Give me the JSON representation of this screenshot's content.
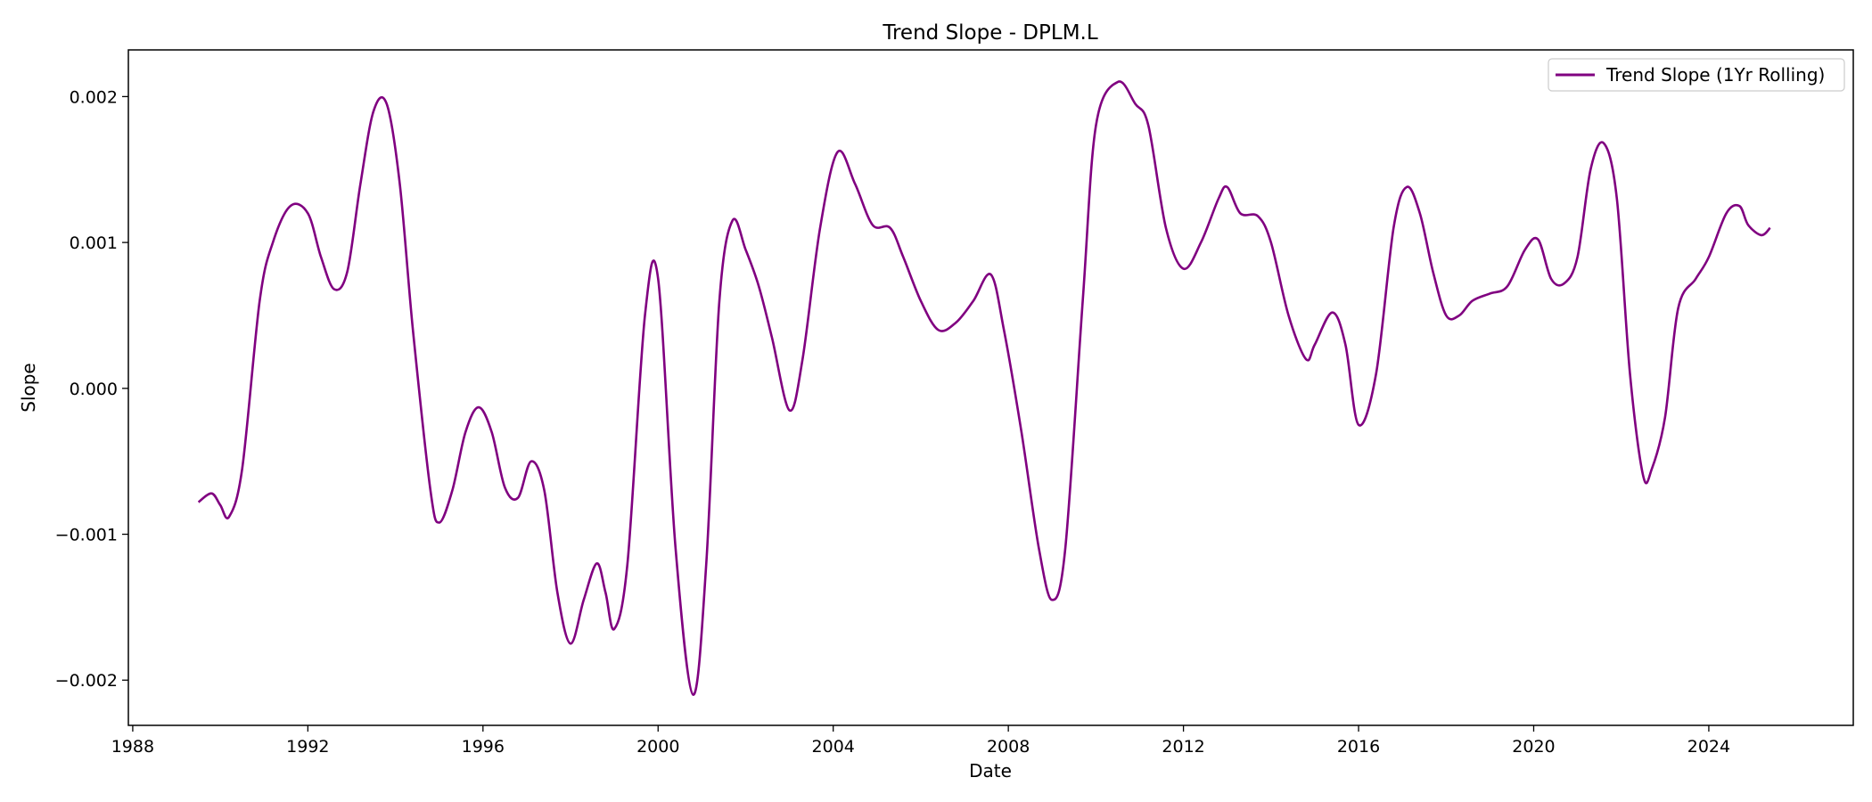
{
  "chart_data": {
    "type": "line",
    "title": "Trend Slope - DPLM.L",
    "xlabel": "Date",
    "ylabel": "Slope",
    "x_ticks": [
      "1988",
      "1992",
      "1996",
      "2000",
      "2004",
      "2008",
      "2012",
      "2016",
      "2020",
      "2024"
    ],
    "y_ticks": [
      "0.002",
      "0.001",
      "0.000",
      "−0.001",
      "−0.002"
    ],
    "xlim": [
      1987.9,
      2027.3
    ],
    "ylim": [
      -0.00231,
      0.00232
    ],
    "grid": false,
    "legend_position": "top-right",
    "color": "#800080",
    "series": [
      {
        "name": "Trend Slope (1Yr Rolling)",
        "x": [
          1989.5,
          1989.8,
          1990.0,
          1990.2,
          1990.5,
          1990.9,
          1991.2,
          1991.6,
          1992.0,
          1992.3,
          1992.6,
          1992.9,
          1993.2,
          1993.5,
          1993.8,
          1994.1,
          1994.4,
          1994.8,
          1995.0,
          1995.3,
          1995.6,
          1995.9,
          1996.2,
          1996.5,
          1996.8,
          1997.1,
          1997.4,
          1997.7,
          1998.0,
          1998.3,
          1998.6,
          1998.8,
          1999.0,
          1999.3,
          1999.7,
          2000.0,
          2000.4,
          2000.8,
          2001.1,
          2001.4,
          2001.7,
          2002.0,
          2002.3,
          2002.6,
          2003.0,
          2003.3,
          2003.7,
          2004.1,
          2004.5,
          2004.9,
          2005.3,
          2005.6,
          2006.0,
          2006.4,
          2006.8,
          2007.2,
          2007.6,
          2007.9,
          2008.3,
          2008.7,
          2009.0,
          2009.3,
          2009.7,
          2010.0,
          2010.5,
          2010.9,
          2011.2,
          2011.6,
          2012.0,
          2012.4,
          2012.8,
          2013.0,
          2013.3,
          2013.7,
          2014.0,
          2014.4,
          2014.8,
          2015.0,
          2015.4,
          2015.7,
          2016.0,
          2016.4,
          2016.8,
          2017.1,
          2017.4,
          2017.7,
          2018.0,
          2018.3,
          2018.6,
          2019.0,
          2019.4,
          2019.8,
          2020.1,
          2020.4,
          2020.7,
          2021.0,
          2021.3,
          2021.6,
          2021.9,
          2022.2,
          2022.5,
          2022.7,
          2023.0,
          2023.3,
          2023.7,
          2024.0,
          2024.4,
          2024.7,
          2024.9,
          2025.2,
          2025.4
        ],
        "y": [
          -0.00078,
          -0.00072,
          -0.0008,
          -0.00088,
          -0.00055,
          0.0006,
          0.001,
          0.00125,
          0.0012,
          0.0009,
          0.00068,
          0.0008,
          0.0014,
          0.0019,
          0.00195,
          0.0014,
          0.0004,
          -0.0007,
          -0.00092,
          -0.0007,
          -0.0003,
          -0.00013,
          -0.0003,
          -0.00068,
          -0.00075,
          -0.0005,
          -0.0007,
          -0.0014,
          -0.00175,
          -0.00145,
          -0.0012,
          -0.0014,
          -0.00165,
          -0.0012,
          0.0005,
          0.00075,
          -0.0011,
          -0.0021,
          -0.0012,
          0.0006,
          0.00115,
          0.00095,
          0.0007,
          0.00035,
          -0.00015,
          0.0002,
          0.0011,
          0.00162,
          0.0014,
          0.00112,
          0.0011,
          0.0009,
          0.0006,
          0.0004,
          0.00045,
          0.0006,
          0.00078,
          0.0004,
          -0.0003,
          -0.0011,
          -0.00145,
          -0.0011,
          0.0006,
          0.0018,
          0.0021,
          0.00195,
          0.0018,
          0.0011,
          0.00082,
          0.001,
          0.0013,
          0.00138,
          0.0012,
          0.00118,
          0.001,
          0.0005,
          0.0002,
          0.0003,
          0.00052,
          0.0003,
          -0.00025,
          0.0001,
          0.0011,
          0.00138,
          0.0012,
          0.0008,
          0.0005,
          0.0005,
          0.0006,
          0.00065,
          0.0007,
          0.00095,
          0.00102,
          0.00075,
          0.00072,
          0.0009,
          0.0015,
          0.00168,
          0.0013,
          0.0001,
          -0.0006,
          -0.00055,
          -0.0002,
          0.00055,
          0.00075,
          0.0009,
          0.0012,
          0.00125,
          0.00112,
          0.00105,
          0.0011
        ]
      }
    ]
  }
}
